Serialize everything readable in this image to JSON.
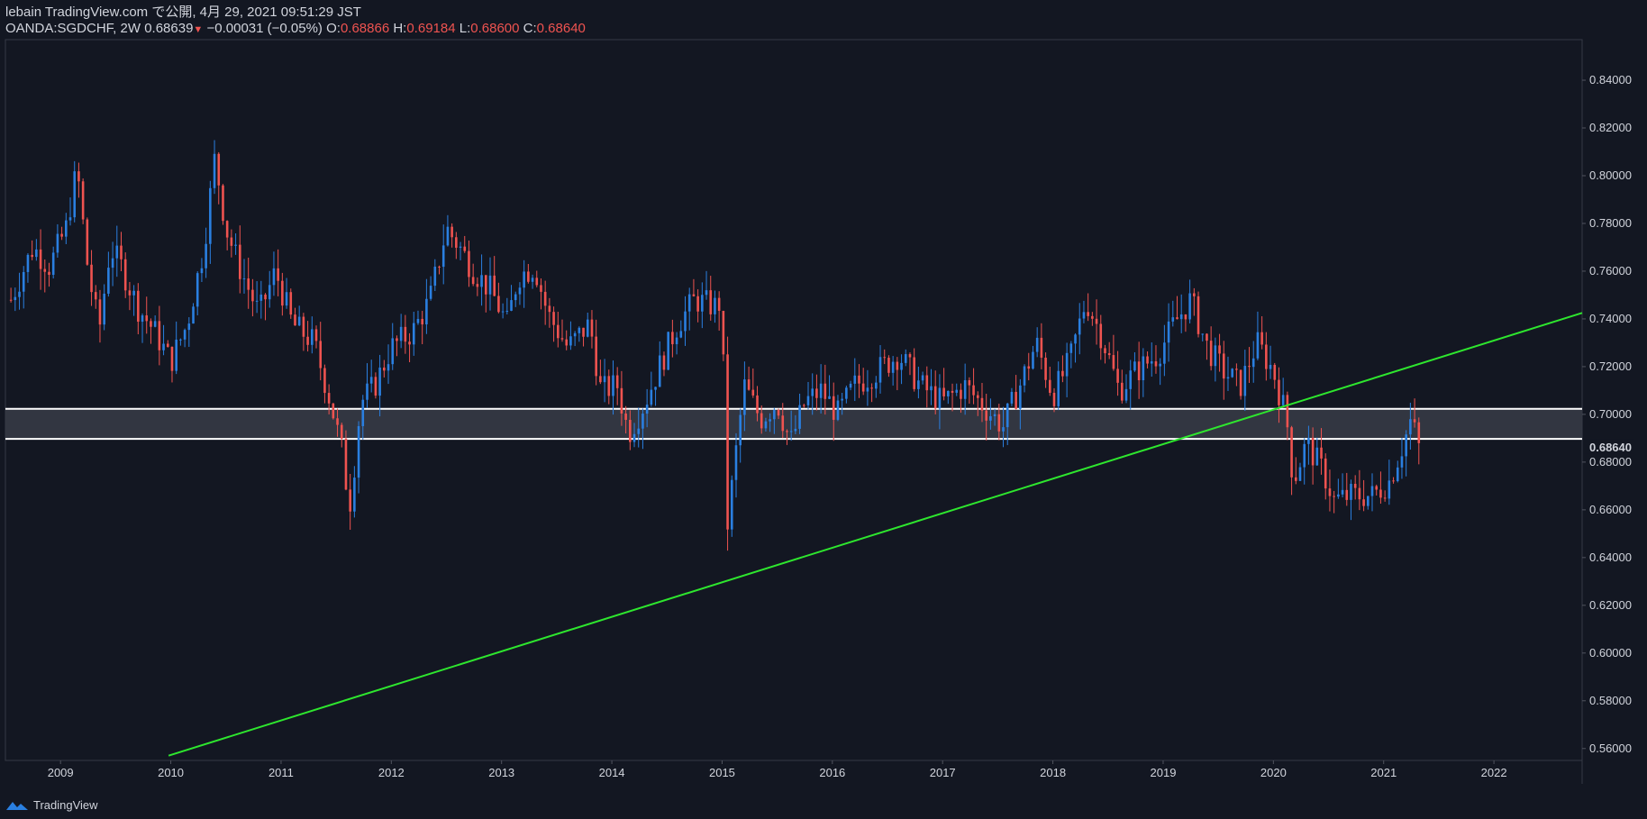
{
  "header": {
    "line1": "lebain TradingView.com で公開, 4月 29, 2021 09:51:29 JST",
    "symbol": "OANDA:SGDCHF, 2W",
    "last": "0.68639",
    "arrow": "▼",
    "change": "−0.00031 (−0.05%)",
    "o_label": "O:",
    "o_value": "0.68866",
    "h_label": "H:",
    "h_value": "0.69184",
    "l_label": "L:",
    "l_value": "0.68600",
    "c_label": "C:",
    "c_value": "0.68640"
  },
  "footer": {
    "brand": "TradingView",
    "logo_icon": "tradingview-logo-icon"
  },
  "colors": {
    "background": "#131722",
    "up": "#2a7fe0",
    "down": "#ef5350",
    "trendline": "#2ee62e",
    "zone_fill": "#363a45",
    "zone_line": "#ffffff",
    "axis_text": "#d1d4dc",
    "price_tag": "#131722"
  },
  "chart_data": {
    "type": "candlestick",
    "interval": "2W",
    "ylim": [
      0.555,
      0.857
    ],
    "xlim": [
      2008.5,
      2022.8
    ],
    "y_ticks": [
      "0.56000",
      "0.58000",
      "0.60000",
      "0.62000",
      "0.64000",
      "0.66000",
      "0.68000",
      "0.70000",
      "0.72000",
      "0.74000",
      "0.76000",
      "0.78000",
      "0.80000",
      "0.82000",
      "0.84000"
    ],
    "x_ticks": [
      "2009",
      "2010",
      "2011",
      "2012",
      "2013",
      "2014",
      "2015",
      "2016",
      "2017",
      "2018",
      "2019",
      "2020",
      "2021",
      "2022"
    ],
    "current_price_label": "0.68640",
    "current_price": 0.6864,
    "zone": {
      "top": 0.7023,
      "bottom": 0.6897
    },
    "trendline": {
      "start": [
        2009.98,
        0.557
      ],
      "end": [
        2022.8,
        0.7425
      ]
    },
    "close_path": [
      [
        2008.55,
        0.748
      ],
      [
        2008.75,
        0.77
      ],
      [
        2008.9,
        0.762
      ],
      [
        2009.05,
        0.778
      ],
      [
        2009.15,
        0.803
      ],
      [
        2009.25,
        0.76
      ],
      [
        2009.35,
        0.735
      ],
      [
        2009.45,
        0.77
      ],
      [
        2009.55,
        0.762
      ],
      [
        2009.7,
        0.745
      ],
      [
        2009.85,
        0.735
      ],
      [
        2010.0,
        0.722
      ],
      [
        2010.15,
        0.738
      ],
      [
        2010.3,
        0.77
      ],
      [
        2010.4,
        0.808
      ],
      [
        2010.5,
        0.778
      ],
      [
        2010.62,
        0.762
      ],
      [
        2010.8,
        0.742
      ],
      [
        2010.95,
        0.76
      ],
      [
        2011.1,
        0.738
      ],
      [
        2011.3,
        0.73
      ],
      [
        2011.45,
        0.705
      ],
      [
        2011.55,
        0.685
      ],
      [
        2011.62,
        0.661
      ],
      [
        2011.68,
        0.685
      ],
      [
        2011.72,
        0.705
      ],
      [
        2011.85,
        0.712
      ],
      [
        2012.0,
        0.728
      ],
      [
        2012.2,
        0.735
      ],
      [
        2012.35,
        0.748
      ],
      [
        2012.5,
        0.778
      ],
      [
        2012.62,
        0.77
      ],
      [
        2012.75,
        0.76
      ],
      [
        2012.9,
        0.752
      ],
      [
        2013.05,
        0.738
      ],
      [
        2013.15,
        0.758
      ],
      [
        2013.3,
        0.762
      ],
      [
        2013.42,
        0.742
      ],
      [
        2013.6,
        0.728
      ],
      [
        2013.8,
        0.738
      ],
      [
        2013.9,
        0.71
      ],
      [
        2014.05,
        0.712
      ],
      [
        2014.15,
        0.692
      ],
      [
        2014.3,
        0.705
      ],
      [
        2014.45,
        0.722
      ],
      [
        2014.6,
        0.738
      ],
      [
        2014.75,
        0.748
      ],
      [
        2014.95,
        0.745
      ],
      [
        2015.0,
        0.748
      ],
      [
        2015.04,
        0.65
      ],
      [
        2015.12,
        0.682
      ],
      [
        2015.2,
        0.712
      ],
      [
        2015.35,
        0.698
      ],
      [
        2015.5,
        0.705
      ],
      [
        2015.62,
        0.688
      ],
      [
        2015.75,
        0.705
      ],
      [
        2015.9,
        0.71
      ],
      [
        2016.05,
        0.7
      ],
      [
        2016.2,
        0.712
      ],
      [
        2016.4,
        0.718
      ],
      [
        2016.6,
        0.725
      ],
      [
        2016.8,
        0.712
      ],
      [
        2017.0,
        0.705
      ],
      [
        2017.2,
        0.712
      ],
      [
        2017.4,
        0.702
      ],
      [
        2017.55,
        0.695
      ],
      [
        2017.7,
        0.712
      ],
      [
        2017.85,
        0.73
      ],
      [
        2018.0,
        0.708
      ],
      [
        2018.15,
        0.722
      ],
      [
        2018.3,
        0.748
      ],
      [
        2018.45,
        0.732
      ],
      [
        2018.6,
        0.71
      ],
      [
        2018.75,
        0.718
      ],
      [
        2018.95,
        0.725
      ],
      [
        2019.1,
        0.738
      ],
      [
        2019.25,
        0.748
      ],
      [
        2019.4,
        0.728
      ],
      [
        2019.55,
        0.718
      ],
      [
        2019.7,
        0.712
      ],
      [
        2019.85,
        0.73
      ],
      [
        2020.0,
        0.718
      ],
      [
        2020.12,
        0.698
      ],
      [
        2020.18,
        0.672
      ],
      [
        2020.3,
        0.688
      ],
      [
        2020.45,
        0.676
      ],
      [
        2020.55,
        0.664
      ],
      [
        2020.7,
        0.666
      ],
      [
        2020.9,
        0.666
      ],
      [
        2021.05,
        0.672
      ],
      [
        2021.18,
        0.688
      ],
      [
        2021.25,
        0.698
      ],
      [
        2021.32,
        0.686
      ]
    ]
  }
}
